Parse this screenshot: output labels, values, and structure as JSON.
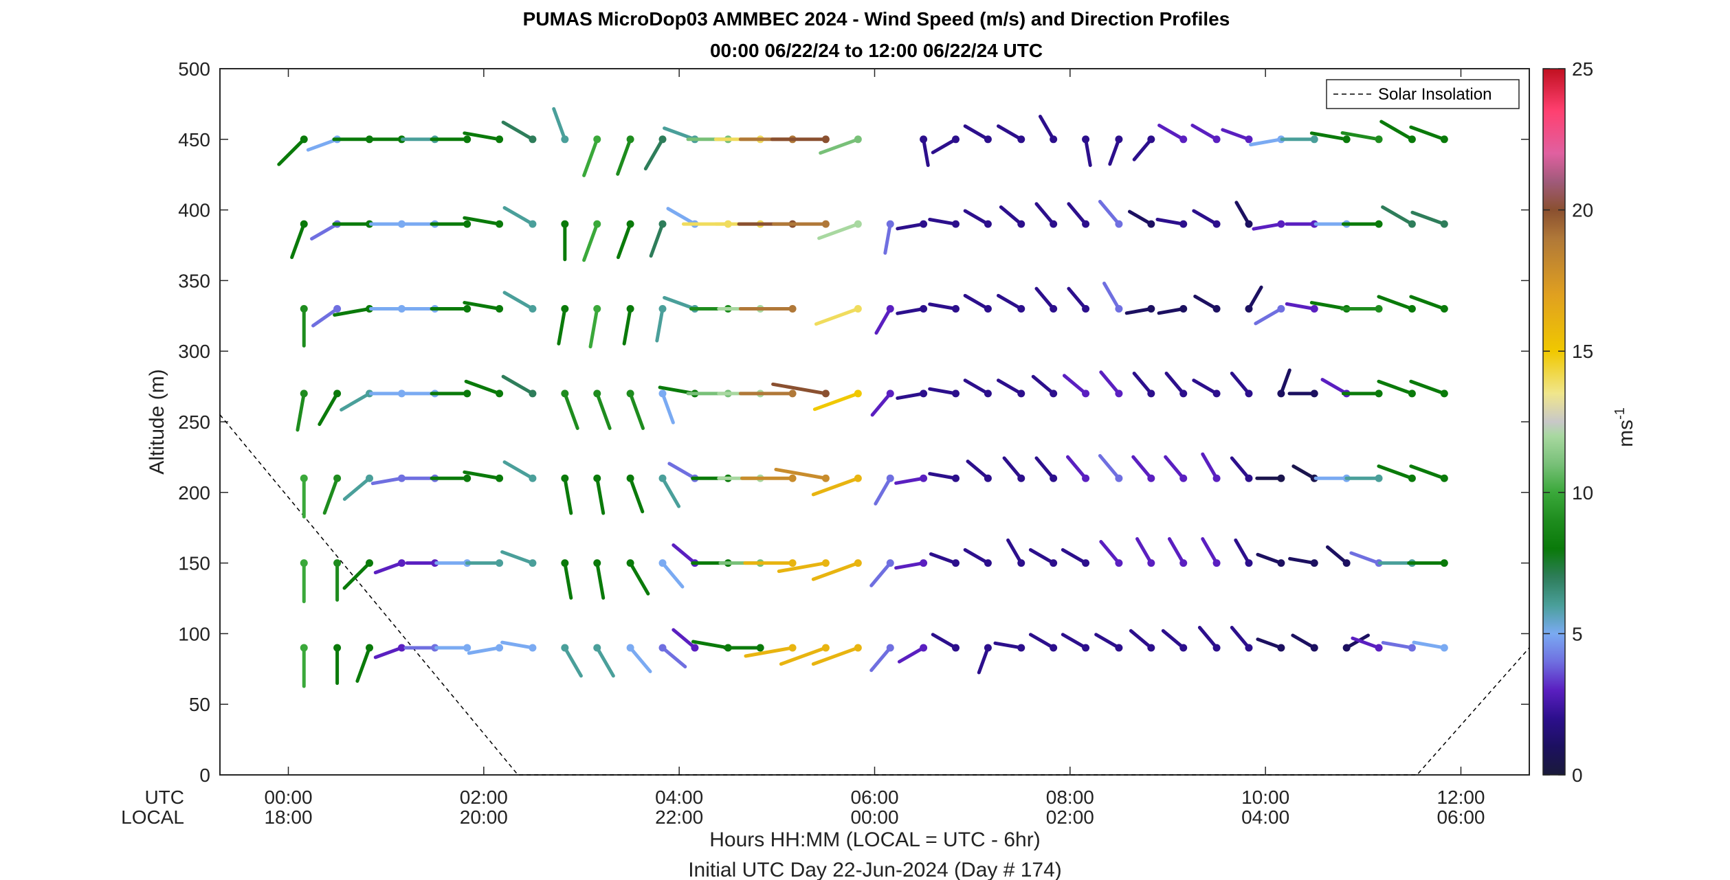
{
  "chart_data": {
    "type": "wind-barb-profile",
    "title": "PUMAS MicroDop03 AMMBEC 2024 - Wind Speed (m/s) and Direction Profiles",
    "subtitle": "00:00 06/22/24 to 12:00 06/22/24  UTC",
    "ylabel": "Altitude (m)",
    "xlabel": "Hours HH:MM  (LOCAL = UTC - 6hr)",
    "footnote": "Initial UTC Day 22-Jun-2024 (Day # 174)",
    "x_row_label_utc": "UTC",
    "x_row_label_local": "LOCAL",
    "xlim_hours": [
      -0.7,
      12.7
    ],
    "ylim": [
      0,
      500
    ],
    "yticks": [
      0,
      50,
      100,
      150,
      200,
      250,
      300,
      350,
      400,
      450,
      500
    ],
    "xticks": [
      {
        "hour": 0,
        "utc": "00:00",
        "local": "18:00"
      },
      {
        "hour": 2,
        "utc": "02:00",
        "local": "20:00"
      },
      {
        "hour": 4,
        "utc": "04:00",
        "local": "22:00"
      },
      {
        "hour": 6,
        "utc": "06:00",
        "local": "00:00"
      },
      {
        "hour": 8,
        "utc": "08:00",
        "local": "02:00"
      },
      {
        "hour": 10,
        "utc": "10:00",
        "local": "04:00"
      },
      {
        "hour": 12,
        "utc": "12:00",
        "local": "06:00"
      }
    ],
    "legend": [
      {
        "label": "Solar Insolation",
        "style": "dashed",
        "position": "top-right"
      }
    ],
    "colorbar": {
      "label": "ms",
      "label_superscript": "-1",
      "range": [
        0,
        25
      ],
      "ticks": [
        0,
        5,
        10,
        15,
        20,
        25
      ],
      "colors": [
        {
          "v": 0,
          "c": "#1a1a3a"
        },
        {
          "v": 1,
          "c": "#1c1060"
        },
        {
          "v": 2,
          "c": "#2c0f8c"
        },
        {
          "v": 3,
          "c": "#5a1fc0"
        },
        {
          "v": 4,
          "c": "#6f6fe0"
        },
        {
          "v": 5,
          "c": "#7aaaf2"
        },
        {
          "v": 6,
          "c": "#4a9f9a"
        },
        {
          "v": 7,
          "c": "#2e7d5a"
        },
        {
          "v": 8,
          "c": "#0a7a0a"
        },
        {
          "v": 9,
          "c": "#1e8c1e"
        },
        {
          "v": 10,
          "c": "#3aa83a"
        },
        {
          "v": 11,
          "c": "#78c078"
        },
        {
          "v": 12,
          "c": "#a8d8a0"
        },
        {
          "v": 12.5,
          "c": "#c8c8c8"
        },
        {
          "v": 13.5,
          "c": "#f0e68c"
        },
        {
          "v": 15,
          "c": "#f0c800"
        },
        {
          "v": 17,
          "c": "#e0a020"
        },
        {
          "v": 19,
          "c": "#b07838"
        },
        {
          "v": 20,
          "c": "#8a5030"
        },
        {
          "v": 21,
          "c": "#a05a7a"
        },
        {
          "v": 22,
          "c": "#e060a0"
        },
        {
          "v": 23.5,
          "c": "#ff4070"
        },
        {
          "v": 25,
          "c": "#c01020"
        }
      ]
    },
    "solar_insolation_hours": [
      {
        "x": -0.7,
        "y": 255
      },
      {
        "x": 2.35,
        "y": 0
      },
      {
        "x": 11.55,
        "y": 0
      },
      {
        "x": 12.7,
        "y": 90
      }
    ],
    "barb_times_hours": [
      0.16,
      0.5,
      0.83,
      1.16,
      1.5,
      1.83,
      2.16,
      2.5,
      2.83,
      3.16,
      3.5,
      3.83,
      4.16,
      4.5,
      4.83,
      5.16,
      5.5,
      5.83,
      6.16,
      6.5,
      6.83,
      7.16,
      7.5,
      7.83,
      8.16,
      8.5,
      8.83,
      9.16,
      9.5,
      9.83,
      10.16,
      10.5,
      10.83,
      11.16,
      11.5,
      11.83
    ],
    "levels": [
      {
        "altitude": 450,
        "speeds": [
          8,
          5,
          8,
          8,
          6,
          8,
          8,
          7,
          6,
          10,
          9,
          7,
          6,
          11,
          14,
          19,
          20,
          11,
          null,
          2,
          2,
          2,
          2,
          2,
          2,
          2,
          2,
          3,
          3,
          3,
          5,
          6,
          8,
          9,
          8,
          8
        ],
        "dirs": [
          225,
          250,
          270,
          270,
          270,
          270,
          280,
          300,
          340,
          200,
          200,
          210,
          290,
          270,
          270,
          270,
          270,
          250,
          null,
          170,
          240,
          300,
          300,
          330,
          170,
          200,
          220,
          300,
          300,
          290,
          260,
          270,
          280,
          280,
          300,
          290
        ]
      },
      {
        "altitude": 390,
        "speeds": [
          8,
          4,
          8,
          5,
          5,
          8,
          8,
          6,
          8,
          10,
          8,
          7,
          5,
          14,
          14,
          20,
          19,
          12,
          4,
          2,
          2,
          2,
          2,
          2,
          2,
          4,
          1,
          2,
          2,
          1,
          3,
          3,
          5,
          8,
          7,
          7
        ],
        "dirs": [
          200,
          240,
          270,
          270,
          270,
          270,
          280,
          300,
          180,
          200,
          200,
          200,
          300,
          270,
          270,
          270,
          270,
          250,
          190,
          260,
          280,
          300,
          310,
          320,
          320,
          320,
          300,
          280,
          300,
          330,
          260,
          270,
          270,
          270,
          300,
          290
        ]
      },
      {
        "altitude": 330,
        "speeds": [
          9,
          4,
          8,
          5,
          5,
          8,
          8,
          6,
          8,
          10,
          8,
          6,
          6,
          9,
          12,
          19,
          null,
          14,
          3,
          2,
          2,
          2,
          2,
          2,
          2,
          4,
          1,
          1,
          1,
          1,
          4,
          3,
          8,
          9,
          8,
          8
        ],
        "dirs": [
          180,
          235,
          260,
          270,
          270,
          270,
          280,
          300,
          190,
          190,
          190,
          190,
          290,
          270,
          270,
          270,
          null,
          250,
          210,
          260,
          280,
          300,
          300,
          320,
          320,
          330,
          260,
          260,
          300,
          30,
          240,
          280,
          280,
          270,
          290,
          290
        ]
      },
      {
        "altitude": 270,
        "speeds": [
          9,
          8,
          6,
          5,
          5,
          8,
          8,
          7,
          9,
          9,
          9,
          5,
          8,
          11,
          12,
          19,
          20,
          15,
          3,
          2,
          2,
          2,
          2,
          2,
          3,
          3,
          2,
          2,
          2,
          2,
          1,
          1,
          3,
          8,
          8,
          8
        ],
        "dirs": [
          190,
          210,
          240,
          270,
          270,
          270,
          290,
          300,
          160,
          160,
          160,
          160,
          280,
          270,
          270,
          270,
          280,
          250,
          220,
          260,
          280,
          300,
          300,
          310,
          310,
          320,
          320,
          320,
          300,
          320,
          20,
          270,
          300,
          270,
          290,
          290
        ]
      },
      {
        "altitude": 210,
        "speeds": [
          10,
          9,
          6,
          4,
          4,
          8,
          8,
          6,
          8,
          8,
          8,
          6,
          4,
          8,
          12,
          18,
          18,
          16,
          4,
          3,
          2,
          2,
          2,
          2,
          3,
          4,
          3,
          3,
          3,
          2,
          0.5,
          0.5,
          5,
          6,
          8,
          8
        ],
        "dirs": [
          180,
          200,
          230,
          260,
          270,
          270,
          280,
          300,
          170,
          170,
          160,
          150,
          300,
          270,
          270,
          270,
          280,
          250,
          210,
          260,
          280,
          310,
          320,
          320,
          320,
          320,
          320,
          320,
          330,
          320,
          270,
          300,
          270,
          270,
          290,
          290
        ]
      },
      {
        "altitude": 150,
        "speeds": [
          10,
          9,
          8,
          3,
          3,
          5,
          6,
          6,
          8,
          8,
          8,
          5,
          3,
          8,
          11,
          16,
          16,
          16,
          4,
          3,
          2,
          2,
          2,
          2,
          2,
          3,
          3,
          3,
          3,
          2,
          1,
          1,
          1,
          4,
          6,
          8
        ],
        "dirs": [
          180,
          180,
          225,
          250,
          270,
          270,
          270,
          290,
          170,
          170,
          150,
          140,
          310,
          270,
          270,
          270,
          260,
          250,
          220,
          260,
          290,
          300,
          330,
          300,
          300,
          320,
          330,
          330,
          330,
          330,
          290,
          280,
          310,
          290,
          270,
          270
        ]
      },
      {
        "altitude": 90,
        "speeds": [
          10,
          8,
          8,
          3,
          4,
          5,
          5,
          5,
          6,
          6,
          5,
          4,
          3,
          8,
          8,
          16,
          16,
          16,
          4,
          3,
          2,
          2,
          2,
          2,
          2,
          2,
          2,
          2,
          2,
          2,
          1,
          1,
          1,
          3,
          4,
          5
        ],
        "dirs": [
          180,
          180,
          200,
          250,
          270,
          270,
          260,
          280,
          150,
          150,
          140,
          130,
          310,
          280,
          270,
          260,
          250,
          250,
          220,
          240,
          300,
          200,
          280,
          300,
          300,
          300,
          310,
          310,
          320,
          320,
          290,
          300,
          60,
          290,
          280,
          280
        ]
      }
    ]
  }
}
